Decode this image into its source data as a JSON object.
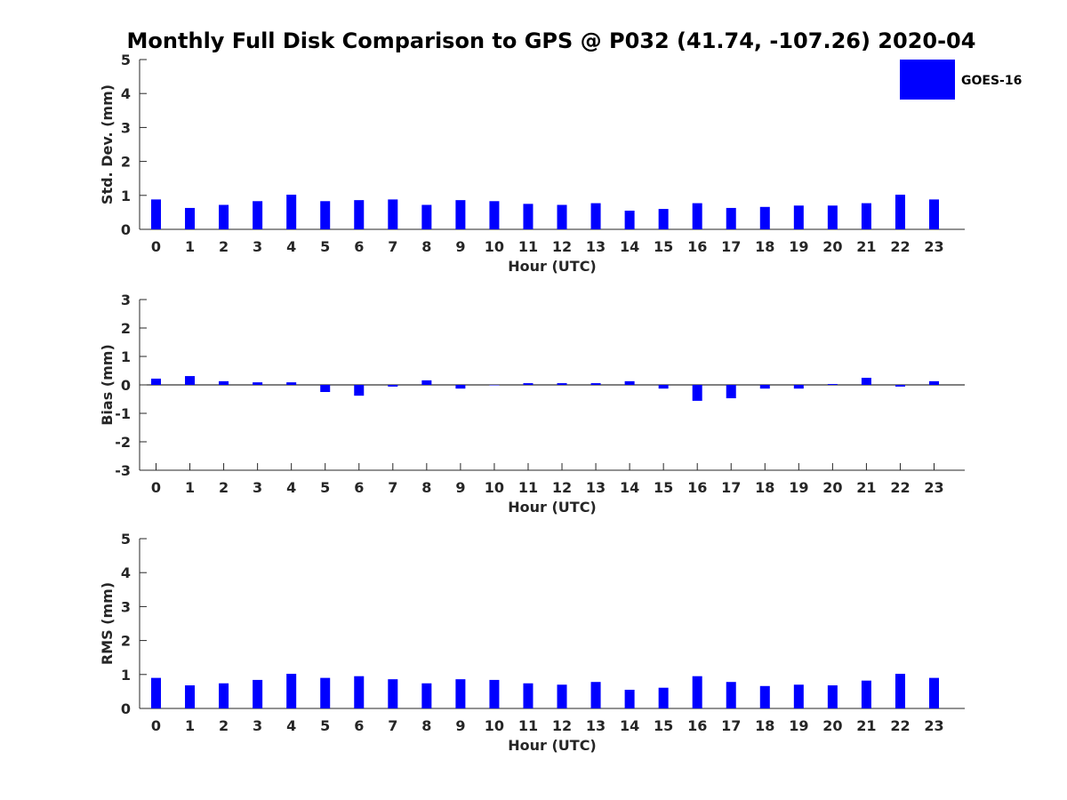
{
  "figure": {
    "title": "Monthly Full Disk Comparison to GPS @ P032 (41.74, -107.26) 2020-04",
    "bar_color": "#0000ff",
    "legend": {
      "label": "GOES-16",
      "placement": "top-right"
    }
  },
  "chart_data": [
    {
      "type": "bar",
      "categories": [
        "0",
        "1",
        "2",
        "3",
        "4",
        "5",
        "6",
        "7",
        "8",
        "9",
        "10",
        "11",
        "12",
        "13",
        "14",
        "15",
        "16",
        "17",
        "18",
        "19",
        "20",
        "21",
        "22",
        "23"
      ],
      "series": [
        {
          "name": "GOES-16",
          "values": [
            0.88,
            0.63,
            0.72,
            0.83,
            1.02,
            0.83,
            0.86,
            0.88,
            0.72,
            0.86,
            0.83,
            0.75,
            0.72,
            0.77,
            0.55,
            0.6,
            0.77,
            0.63,
            0.66,
            0.7,
            0.7,
            0.77,
            1.02,
            0.88
          ]
        }
      ],
      "xlabel": "Hour (UTC)",
      "ylabel": "Std. Dev. (mm)",
      "ylim": [
        0,
        5
      ],
      "yticks": [
        0,
        1,
        2,
        3,
        4,
        5
      ],
      "grid": false
    },
    {
      "type": "bar",
      "categories": [
        "0",
        "1",
        "2",
        "3",
        "4",
        "5",
        "6",
        "7",
        "8",
        "9",
        "10",
        "11",
        "12",
        "13",
        "14",
        "15",
        "16",
        "17",
        "18",
        "19",
        "20",
        "21",
        "22",
        "23"
      ],
      "series": [
        {
          "name": "GOES-16",
          "values": [
            0.22,
            0.31,
            0.13,
            0.09,
            0.09,
            -0.25,
            -0.38,
            -0.06,
            0.16,
            -0.13,
            0.0,
            0.06,
            0.06,
            0.06,
            0.13,
            -0.13,
            -0.56,
            -0.47,
            -0.13,
            -0.13,
            0.03,
            0.25,
            -0.06,
            0.13
          ]
        }
      ],
      "xlabel": "Hour (UTC)",
      "ylabel": "Bias (mm)",
      "ylim": [
        -3,
        3
      ],
      "yticks": [
        -3,
        -2,
        -1,
        0,
        1,
        2,
        3
      ],
      "grid": false,
      "zero_line": true
    },
    {
      "type": "bar",
      "categories": [
        "0",
        "1",
        "2",
        "3",
        "4",
        "5",
        "6",
        "7",
        "8",
        "9",
        "10",
        "11",
        "12",
        "13",
        "14",
        "15",
        "16",
        "17",
        "18",
        "19",
        "20",
        "21",
        "22",
        "23"
      ],
      "series": [
        {
          "name": "GOES-16",
          "values": [
            0.9,
            0.68,
            0.74,
            0.84,
            1.02,
            0.9,
            0.95,
            0.86,
            0.74,
            0.86,
            0.84,
            0.74,
            0.7,
            0.78,
            0.55,
            0.61,
            0.95,
            0.78,
            0.66,
            0.7,
            0.68,
            0.82,
            1.02,
            0.9
          ]
        }
      ],
      "xlabel": "Hour (UTC)",
      "ylabel": "RMS (mm)",
      "ylim": [
        0,
        5
      ],
      "yticks": [
        0,
        1,
        2,
        3,
        4,
        5
      ],
      "grid": false
    }
  ]
}
